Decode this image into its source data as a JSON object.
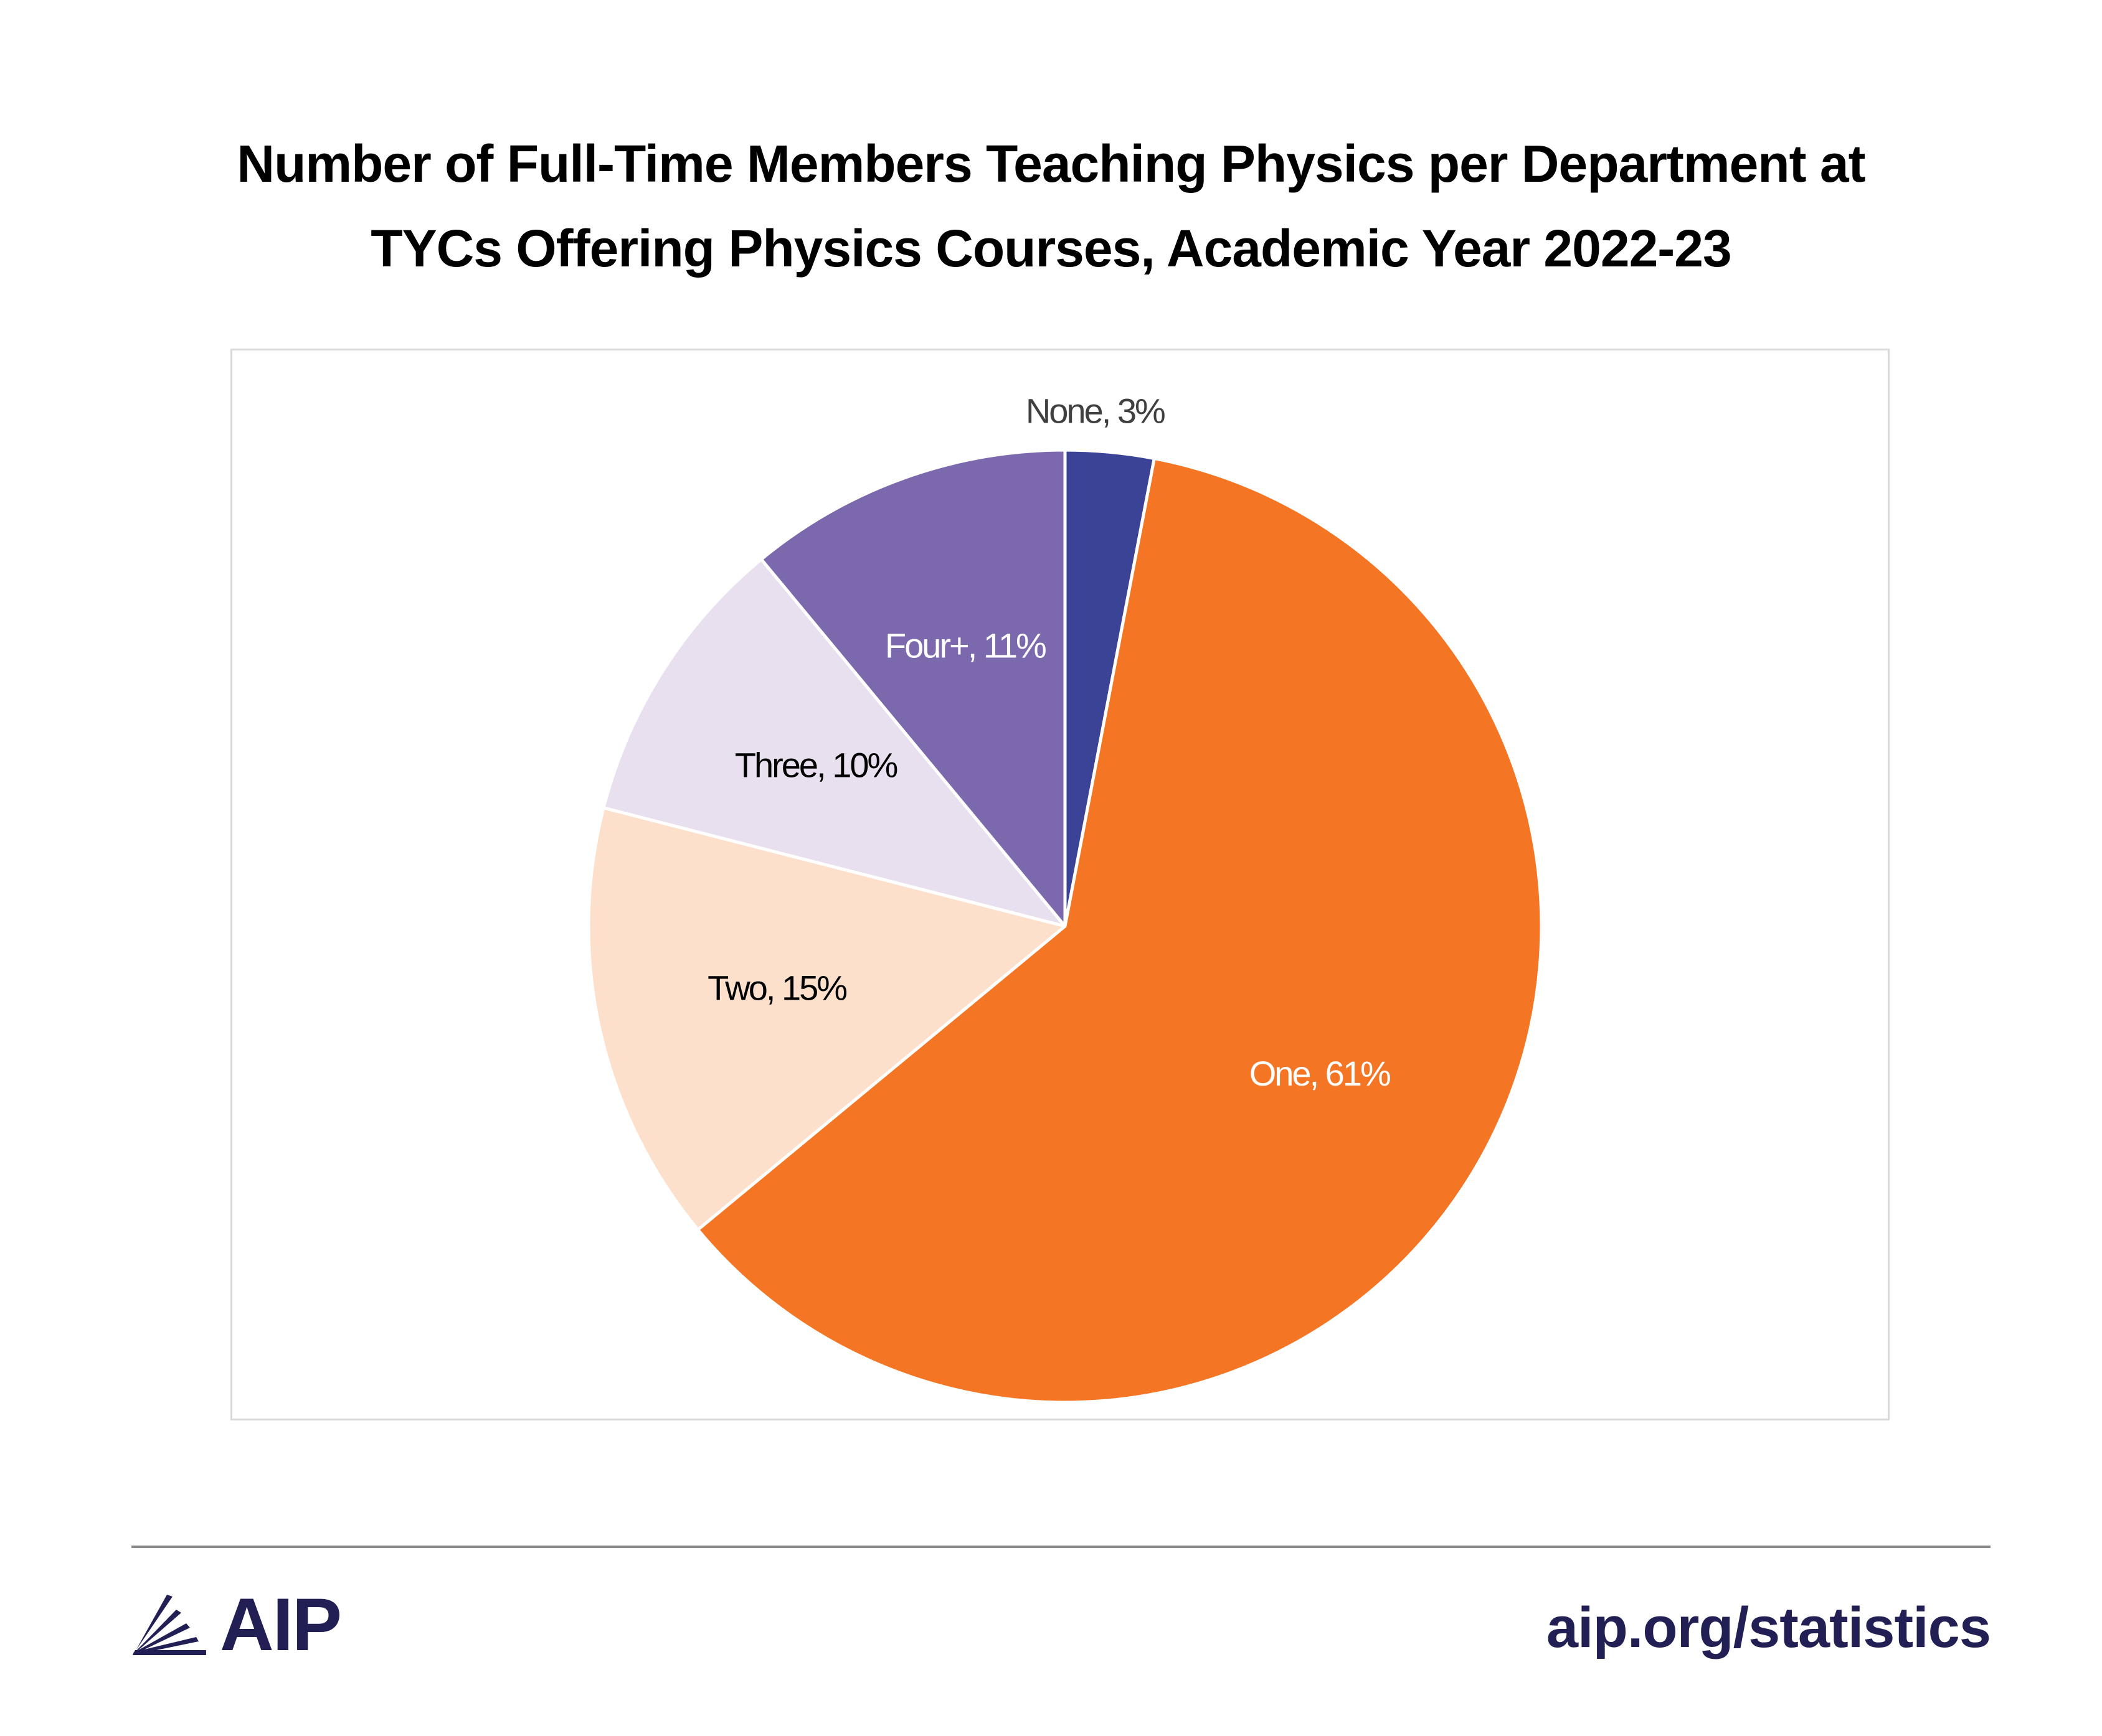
{
  "title": {
    "line1": "Number of Full-Time Members Teaching Physics per Department at",
    "line2": "TYCs Offering Physics Courses, Academic Year 2022-23"
  },
  "chart_data": {
    "type": "pie",
    "title": "Number of Full-Time Members Teaching Physics per Department at TYCs Offering Physics Courses, Academic Year 2022-23",
    "slices": [
      {
        "name": "None",
        "value": 3,
        "label": "None, 3%",
        "color": "#3b4397",
        "label_color": "#404040"
      },
      {
        "name": "One",
        "value": 61,
        "label": "One, 61%",
        "color": "#f47523",
        "label_color": "#ffffff"
      },
      {
        "name": "Two",
        "value": 15,
        "label": "Two, 15%",
        "color": "#fde0cc",
        "label_color": "#000000"
      },
      {
        "name": "Three",
        "value": 10,
        "label": "Three, 10%",
        "color": "#e9e0ef",
        "label_color": "#000000"
      },
      {
        "name": "Four+",
        "value": 11,
        "label": "Four+, 11%",
        "color": "#7b68ad",
        "label_color": "#ffffff"
      }
    ],
    "start_angle": "12 o'clock",
    "direction": "clockwise",
    "legend": "none"
  },
  "footer": {
    "logo_text": "AIP",
    "logo_icon": "aip-fan-icon",
    "url": "aip.org/statistics"
  },
  "colors": {
    "brand_navy": "#221f54",
    "frame_border": "#d9d9d9",
    "rule": "#8c8c8c"
  }
}
